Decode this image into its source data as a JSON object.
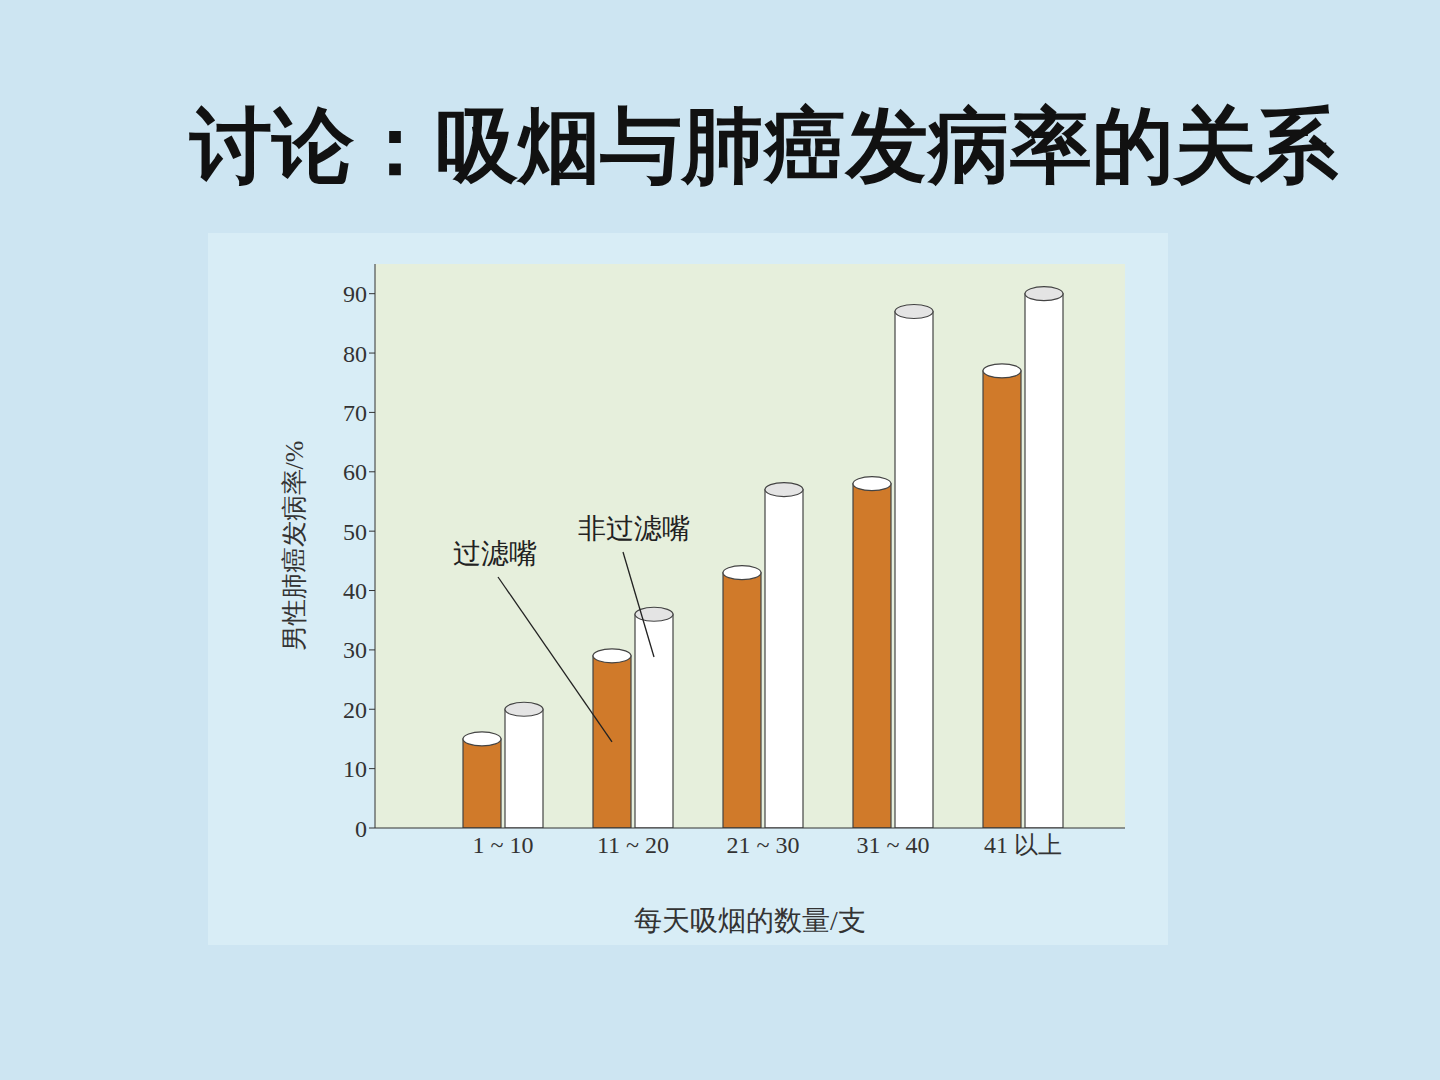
{
  "chart_data": {
    "type": "bar",
    "title": "讨论：吸烟与肺癌发病率的关系",
    "x_label": "每天吸烟的数量/支",
    "y_label": "男性肺癌发病率/%",
    "categories": [
      "1 ~ 10",
      "11 ~ 20",
      "21 ~ 30",
      "31 ~ 40",
      "41 以上"
    ],
    "series": [
      {
        "name": "过滤嘴",
        "color": "#d07a2a",
        "values": [
          15,
          29,
          43,
          58,
          77
        ]
      },
      {
        "name": "非过滤嘴",
        "color": "#ffffff",
        "values": [
          20,
          36,
          57,
          87,
          90
        ]
      }
    ],
    "ylim": [
      0,
      95
    ],
    "yticks": [
      0,
      10,
      20,
      30,
      40,
      50,
      60,
      70,
      80,
      90
    ],
    "grid": false
  }
}
